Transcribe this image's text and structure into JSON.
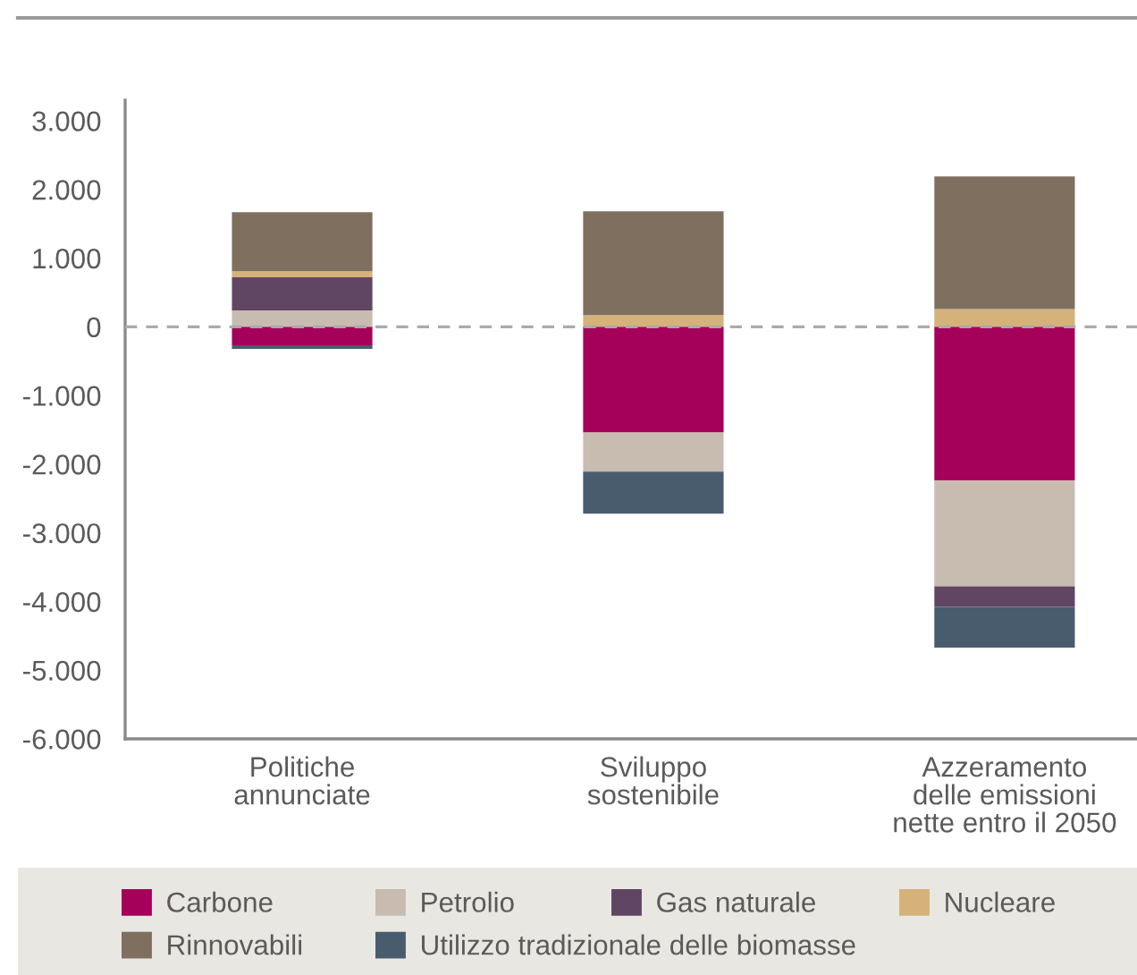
{
  "chart_data": {
    "type": "bar",
    "stacked": true,
    "categories": [
      "Politiche\nannunciate",
      "Sviluppo\nsostenibile",
      "Azzeramento\ndelle emissioni\nnette entro il 2050"
    ],
    "series": [
      {
        "name": "Carbone",
        "color": "#a5005a",
        "values": [
          -270,
          -1540,
          -2240
        ]
      },
      {
        "name": "Petrolio",
        "color": "#c8bbaf",
        "values": [
          240,
          -570,
          -1540
        ]
      },
      {
        "name": "Gas naturale",
        "color": "#614664",
        "values": [
          480,
          null,
          -300
        ]
      },
      {
        "name": "Nucleare",
        "color": "#d4b27a",
        "values": [
          90,
          170,
          260
        ]
      },
      {
        "name": "Rinnovabili",
        "color": "#7f6f5f",
        "values": [
          860,
          1510,
          1930
        ]
      },
      {
        "name": "Utilizzo tradizionale delle biomasse",
        "color": "#485c6d",
        "values": [
          -50,
          -610,
          -590
        ]
      }
    ],
    "ylim": [
      -6000,
      3300
    ],
    "yticks": [
      {
        "value": -6000,
        "label": "-6.000"
      },
      {
        "value": -5000,
        "label": "-5.000"
      },
      {
        "value": -4000,
        "label": "-4.000"
      },
      {
        "value": -3000,
        "label": "-3.000"
      },
      {
        "value": -2000,
        "label": "-2.000"
      },
      {
        "value": -1000,
        "label": "-1.000"
      },
      0,
      {
        "value": 1000,
        "label": "1.000"
      },
      {
        "value": 2000,
        "label": "2.000"
      },
      {
        "value": 3000,
        "label": "3.000"
      }
    ],
    "ref_lines": [
      {
        "axis": "y",
        "value": 0,
        "color": "#aaaaaa",
        "line_style": "dashed"
      }
    ],
    "legend": "bottom"
  }
}
